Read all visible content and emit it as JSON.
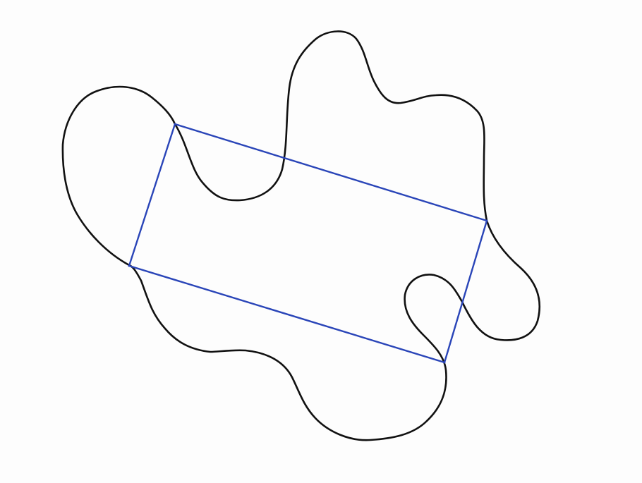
{
  "figure": {
    "closed_curve": {
      "stroke_color": "#111111"
    },
    "inscribed_rectangle": {
      "stroke_color": "#2a45b8",
      "vertex_count": 4
    },
    "background_color": "#fdfdfd"
  }
}
